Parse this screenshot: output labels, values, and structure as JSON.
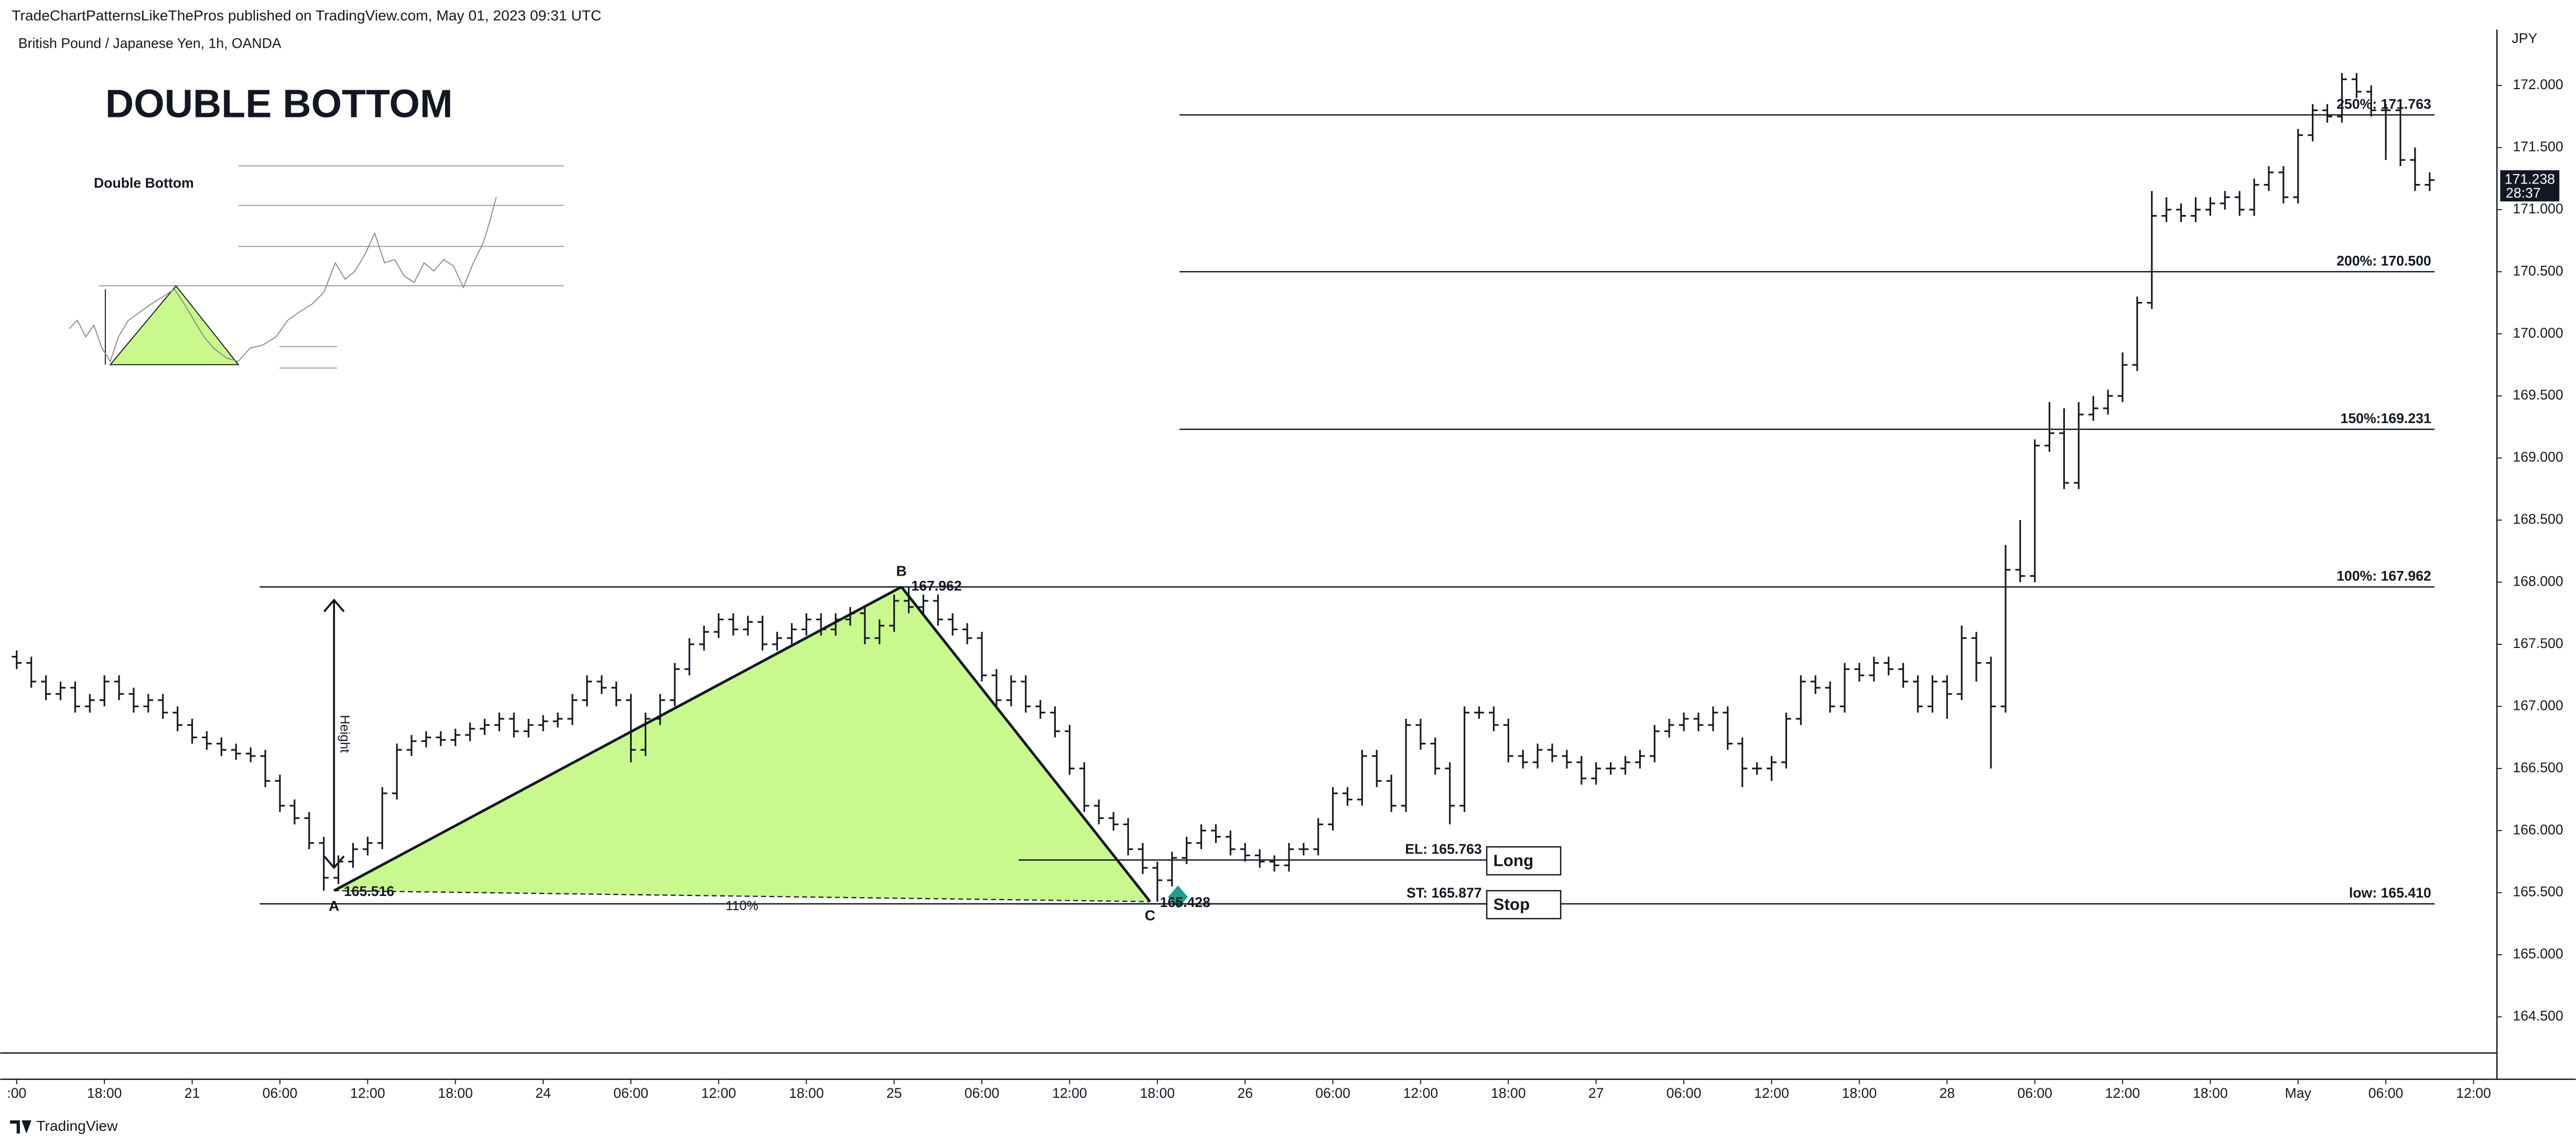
{
  "header": {
    "published": "TradeChartPatternsLikeThePros published on TradingView.com, May 01, 2023 09:31 UTC",
    "brand": "TradingView"
  },
  "chart_data": {
    "type": "ohlc",
    "title": "DOUBLE BOTTOM",
    "subtitle": "British Pound / Japanese Yen, 1h, OANDA",
    "inset_title": "Double Bottom",
    "y_unit": "JPY",
    "countdown": "28:37",
    "color": "#131722",
    "open": [
      167.4,
      167.35,
      167.2,
      167.1,
      167.15,
      167.0,
      167.05,
      167.2,
      167.1,
      167.0,
      167.05,
      166.95,
      166.85,
      166.75,
      166.7,
      166.65,
      166.62,
      166.6,
      166.4,
      166.2,
      166.1,
      165.9,
      165.62,
      165.75,
      165.85,
      165.9,
      166.3,
      166.65,
      166.72,
      166.75,
      166.73,
      166.77,
      166.82,
      166.85,
      166.9,
      166.8,
      166.85,
      166.88,
      166.9,
      167.05,
      167.2,
      167.15,
      167.05,
      166.65,
      166.9,
      167.05,
      167.3,
      167.5,
      167.6,
      167.7,
      167.62,
      167.68,
      167.5,
      167.55,
      167.62,
      167.7,
      167.62,
      167.7,
      167.75,
      167.55,
      167.65,
      167.85,
      167.8,
      167.85,
      167.7,
      167.62,
      167.55,
      167.25,
      167.05,
      167.2,
      167.0,
      166.95,
      166.8,
      166.5,
      166.2,
      166.1,
      166.05,
      165.85,
      165.7,
      165.6,
      165.78,
      165.9,
      166.0,
      165.95,
      165.85,
      165.8,
      165.75,
      165.72,
      165.85,
      165.85,
      166.05,
      166.3,
      166.25,
      166.6,
      166.4,
      166.2,
      166.85,
      166.7,
      166.5,
      166.2,
      166.95,
      166.95,
      166.85,
      166.6,
      166.55,
      166.65,
      166.6,
      166.55,
      166.42,
      166.5,
      166.5,
      166.55,
      166.6,
      166.8,
      166.85,
      166.9,
      166.85,
      166.95,
      166.7,
      166.5,
      166.5,
      166.55,
      166.9,
      167.2,
      167.15,
      167.0,
      167.3,
      167.25,
      167.35,
      167.3,
      167.2,
      167.0,
      167.2,
      167.1,
      167.55,
      167.35,
      167.0,
      168.1,
      168.05,
      169.1,
      169.2,
      168.8,
      169.35,
      169.4,
      169.5,
      169.75,
      170.25,
      170.95,
      171.0,
      170.95,
      171.0,
      171.05,
      171.1,
      171.0,
      171.2,
      171.3,
      171.1,
      171.6,
      171.8,
      171.75,
      172.05,
      171.95,
      171.8,
      171.8,
      171.4,
      171.2
    ],
    "high": [
      167.45,
      167.4,
      167.25,
      167.2,
      167.2,
      167.1,
      167.25,
      167.25,
      167.15,
      167.1,
      167.1,
      167.0,
      166.9,
      166.8,
      166.75,
      166.7,
      166.67,
      166.65,
      166.45,
      166.25,
      166.15,
      165.95,
      165.8,
      165.9,
      165.95,
      166.35,
      166.7,
      166.77,
      166.8,
      166.8,
      166.82,
      166.87,
      166.9,
      166.95,
      166.95,
      166.9,
      166.93,
      166.95,
      167.1,
      167.25,
      167.25,
      167.2,
      167.1,
      166.95,
      167.1,
      167.35,
      167.55,
      167.65,
      167.75,
      167.75,
      167.73,
      167.73,
      167.6,
      167.67,
      167.75,
      167.75,
      167.75,
      167.8,
      167.8,
      167.7,
      167.9,
      167.962,
      167.9,
      167.9,
      167.75,
      167.67,
      167.6,
      167.3,
      167.25,
      167.25,
      167.05,
      167.0,
      166.85,
      166.55,
      166.25,
      166.15,
      166.1,
      165.9,
      165.75,
      165.83,
      165.95,
      166.05,
      166.05,
      166.0,
      165.9,
      165.85,
      165.8,
      165.9,
      165.9,
      166.1,
      166.35,
      166.35,
      166.65,
      166.65,
      166.45,
      166.9,
      166.9,
      166.75,
      166.55,
      167.0,
      167.0,
      167.0,
      166.9,
      166.65,
      166.7,
      166.7,
      166.65,
      166.6,
      166.55,
      166.55,
      166.6,
      166.65,
      166.85,
      166.9,
      166.95,
      166.95,
      167.0,
      167.0,
      166.75,
      166.55,
      166.6,
      166.95,
      167.25,
      167.25,
      167.2,
      167.35,
      167.35,
      167.4,
      167.4,
      167.35,
      167.25,
      167.25,
      167.25,
      167.65,
      167.6,
      167.4,
      168.3,
      168.5,
      169.15,
      169.45,
      169.4,
      169.45,
      169.5,
      169.55,
      169.85,
      170.3,
      171.15,
      171.1,
      171.05,
      171.1,
      171.1,
      171.15,
      171.15,
      171.25,
      171.35,
      171.35,
      171.65,
      171.85,
      171.85,
      172.1,
      172.1,
      172.0,
      171.85,
      171.85,
      171.5,
      171.3
    ],
    "low": [
      167.3,
      167.15,
      167.05,
      167.05,
      166.95,
      166.95,
      167.0,
      167.05,
      166.95,
      166.95,
      166.9,
      166.8,
      166.7,
      166.65,
      166.6,
      166.57,
      166.55,
      166.35,
      166.15,
      166.05,
      165.85,
      165.516,
      165.57,
      165.7,
      165.8,
      165.85,
      166.25,
      166.6,
      166.67,
      166.68,
      166.68,
      166.72,
      166.77,
      166.8,
      166.75,
      166.75,
      166.8,
      166.83,
      166.85,
      167.0,
      167.1,
      167.0,
      166.55,
      166.6,
      166.85,
      167.0,
      167.25,
      167.45,
      167.55,
      167.57,
      167.57,
      167.45,
      167.45,
      167.5,
      167.57,
      167.57,
      167.57,
      167.65,
      167.5,
      167.5,
      167.6,
      167.75,
      167.75,
      167.65,
      167.57,
      167.5,
      167.2,
      167.0,
      167.0,
      166.95,
      166.9,
      166.75,
      166.45,
      166.15,
      166.05,
      166.0,
      165.8,
      165.65,
      165.428,
      165.55,
      165.73,
      165.85,
      165.9,
      165.8,
      165.75,
      165.7,
      165.67,
      165.67,
      165.8,
      165.8,
      166.0,
      166.2,
      166.2,
      166.35,
      166.15,
      166.15,
      166.65,
      166.45,
      166.05,
      166.15,
      166.9,
      166.8,
      166.55,
      166.5,
      166.5,
      166.55,
      166.5,
      166.37,
      166.37,
      166.45,
      166.45,
      166.5,
      166.55,
      166.75,
      166.8,
      166.8,
      166.8,
      166.65,
      166.35,
      166.45,
      166.4,
      166.5,
      166.85,
      167.1,
      166.95,
      166.95,
      167.2,
      167.2,
      167.25,
      167.15,
      166.95,
      166.95,
      166.9,
      167.05,
      167.2,
      166.5,
      166.95,
      168.0,
      168.0,
      169.05,
      168.75,
      168.75,
      169.3,
      169.35,
      169.45,
      169.7,
      170.2,
      170.9,
      170.9,
      170.9,
      170.95,
      171.0,
      170.95,
      170.95,
      171.15,
      171.05,
      171.05,
      171.55,
      171.7,
      171.7,
      171.9,
      171.75,
      171.4,
      171.35,
      171.15,
      171.15
    ],
    "close": [
      167.35,
      167.2,
      167.1,
      167.15,
      167.0,
      167.05,
      167.2,
      167.1,
      167.0,
      167.05,
      166.95,
      166.85,
      166.75,
      166.7,
      166.65,
      166.62,
      166.6,
      166.4,
      166.2,
      166.1,
      165.9,
      165.62,
      165.75,
      165.85,
      165.9,
      166.3,
      166.65,
      166.72,
      166.75,
      166.73,
      166.77,
      166.82,
      166.85,
      166.9,
      166.8,
      166.85,
      166.88,
      166.9,
      167.05,
      167.2,
      167.15,
      167.05,
      166.65,
      166.9,
      167.05,
      167.3,
      167.5,
      167.6,
      167.7,
      167.62,
      167.68,
      167.5,
      167.55,
      167.62,
      167.7,
      167.62,
      167.7,
      167.75,
      167.55,
      167.65,
      167.85,
      167.8,
      167.85,
      167.7,
      167.62,
      167.55,
      167.25,
      167.05,
      167.2,
      167.0,
      166.95,
      166.8,
      166.5,
      166.2,
      166.1,
      166.05,
      165.85,
      165.7,
      165.6,
      165.78,
      165.9,
      166.0,
      165.95,
      165.85,
      165.8,
      165.75,
      165.72,
      165.85,
      165.85,
      166.05,
      166.3,
      166.25,
      166.6,
      166.4,
      166.2,
      166.85,
      166.7,
      166.5,
      166.2,
      166.95,
      166.95,
      166.85,
      166.6,
      166.55,
      166.65,
      166.6,
      166.55,
      166.42,
      166.5,
      166.5,
      166.55,
      166.6,
      166.8,
      166.85,
      166.9,
      166.85,
      166.95,
      166.7,
      166.5,
      166.5,
      166.55,
      166.9,
      167.2,
      167.15,
      167.0,
      167.3,
      167.25,
      167.35,
      167.3,
      167.2,
      167.0,
      167.2,
      167.1,
      167.55,
      167.35,
      167.0,
      168.1,
      168.05,
      169.1,
      169.2,
      168.8,
      169.35,
      169.4,
      169.5,
      169.75,
      170.25,
      170.95,
      171.0,
      170.95,
      171.0,
      171.05,
      171.1,
      171.0,
      171.2,
      171.3,
      171.1,
      171.6,
      171.8,
      171.75,
      172.05,
      171.95,
      171.8,
      171.8,
      171.4,
      171.2,
      171.238
    ],
    "xlim": [
      -0.34,
      169.6
    ],
    "xticks": [
      {
        "value": 0,
        "label": ":00"
      },
      {
        "value": 6,
        "label": "18:00"
      },
      {
        "value": 12,
        "label": "21"
      },
      {
        "value": 18,
        "label": "06:00"
      },
      {
        "value": 24,
        "label": "12:00"
      },
      {
        "value": 30,
        "label": "18:00"
      },
      {
        "value": 36,
        "label": "24"
      },
      {
        "value": 42,
        "label": "06:00"
      },
      {
        "value": 48,
        "label": "12:00"
      },
      {
        "value": 54,
        "label": "18:00"
      },
      {
        "value": 60,
        "label": "25"
      },
      {
        "value": 66,
        "label": "06:00"
      },
      {
        "value": 72,
        "label": "12:00"
      },
      {
        "value": 78,
        "label": "18:00"
      },
      {
        "value": 84,
        "label": "26"
      },
      {
        "value": 90,
        "label": "06:00"
      },
      {
        "value": 96,
        "label": "12:00"
      },
      {
        "value": 102,
        "label": "18:00"
      },
      {
        "value": 108,
        "label": "27"
      },
      {
        "value": 114,
        "label": "06:00"
      },
      {
        "value": 120,
        "label": "12:00"
      },
      {
        "value": 126,
        "label": "18:00"
      },
      {
        "value": 132,
        "label": "28"
      },
      {
        "value": 138,
        "label": "06:00"
      },
      {
        "value": 144,
        "label": "12:00"
      },
      {
        "value": 150,
        "label": "18:00"
      },
      {
        "value": 156,
        "label": "May"
      },
      {
        "value": 162,
        "label": "06:00"
      },
      {
        "value": 168,
        "label": "12:00"
      }
    ],
    "ylim": [
      164.222,
      172.45
    ],
    "yticks": [
      {
        "value": 164.5,
        "label": "164.500"
      },
      {
        "value": 165,
        "label": "165.000"
      },
      {
        "value": 165.5,
        "label": "165.500"
      },
      {
        "value": 166,
        "label": "166.000"
      },
      {
        "value": 166.5,
        "label": "166.500"
      },
      {
        "value": 167,
        "label": "167.000"
      },
      {
        "value": 167.5,
        "label": "167.500"
      },
      {
        "value": 168,
        "label": "168.000"
      },
      {
        "value": 168.5,
        "label": "168.500"
      },
      {
        "value": 169,
        "label": "169.000"
      },
      {
        "value": 169.5,
        "label": "169.500"
      },
      {
        "value": 170,
        "label": "170.000"
      },
      {
        "value": 170.5,
        "label": "170.500"
      },
      {
        "value": 171,
        "label": "171.000"
      },
      {
        "value": 171.5,
        "label": "171.500"
      },
      {
        "value": 172,
        "label": "172.000"
      }
    ],
    "pattern": {
      "color": "#c9f88f",
      "points": [
        {
          "label": "A",
          "x": 21.7,
          "y": 165.516,
          "value_label": "165.516"
        },
        {
          "label": "B",
          "x": 60.5,
          "y": 167.962,
          "value_label": "167.962"
        },
        {
          "label": "C",
          "x": 77.5,
          "y": 165.428,
          "value_label": "165.428"
        }
      ],
      "height_label": "Height",
      "ratio_label": "110%"
    },
    "levels": [
      {
        "label": "250%: 171.763",
        "value": 171.763
      },
      {
        "label": "200%: 170.500",
        "value": 170.5
      },
      {
        "label": "150%:169.231",
        "value": 169.231
      },
      {
        "label": "100%: 167.962",
        "value": 167.962
      },
      {
        "label": "low: 165.410",
        "value": 165.41
      }
    ],
    "orders": [
      {
        "label": "EL: 165.763",
        "value": 165.763,
        "tag": "Long"
      },
      {
        "label": "ST: 165.877",
        "tag": "Stop"
      }
    ]
  }
}
